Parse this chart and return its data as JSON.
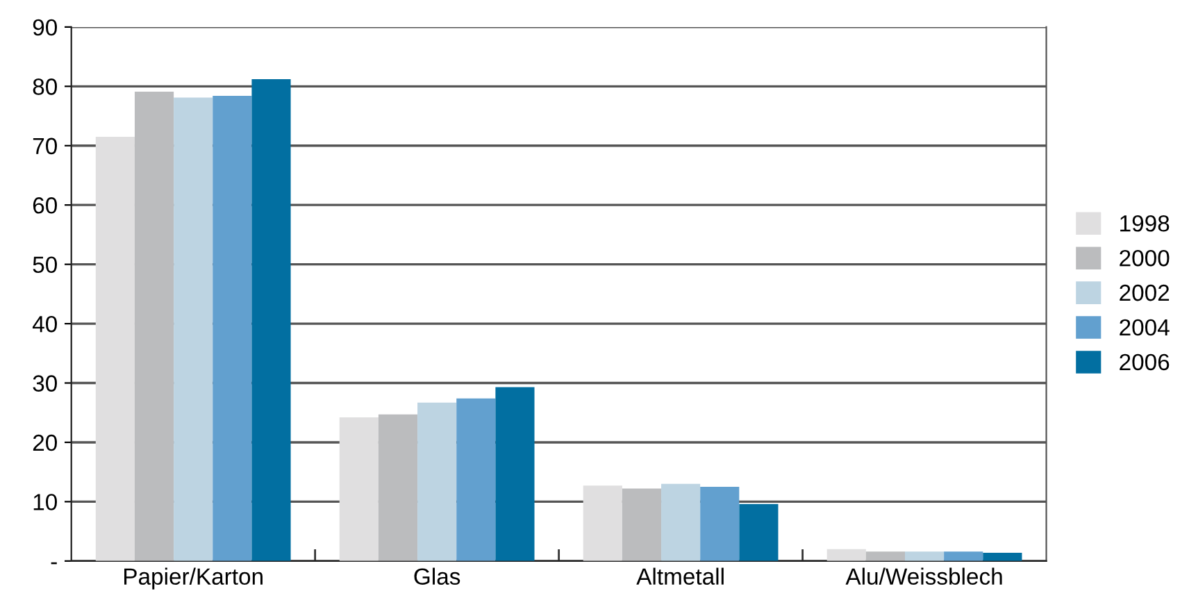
{
  "chart_data": {
    "type": "bar",
    "categories": [
      "Papier/Karton",
      "Glas",
      "Altmetall",
      "Alu/Weissblech"
    ],
    "series": [
      {
        "name": "1998",
        "color": "#e0dfe0",
        "values": [
          71.5,
          24.2,
          12.7,
          2.0
        ]
      },
      {
        "name": "2000",
        "color": "#bbbcbe",
        "values": [
          79.1,
          24.7,
          12.2,
          1.6
        ]
      },
      {
        "name": "2002",
        "color": "#bdd4e2",
        "values": [
          78.1,
          26.7,
          13.0,
          1.6
        ]
      },
      {
        "name": "2004",
        "color": "#62a0cf",
        "values": [
          78.4,
          27.4,
          12.5,
          1.6
        ]
      },
      {
        "name": "2006",
        "color": "#026fa1",
        "values": [
          81.2,
          29.3,
          9.6,
          1.4
        ]
      }
    ],
    "ylim": [
      0,
      90
    ],
    "yticks": [
      {
        "value": 0,
        "label": "-"
      },
      10,
      20,
      30,
      40,
      50,
      60,
      70,
      80,
      90
    ],
    "grid": "y",
    "legend": "right"
  }
}
